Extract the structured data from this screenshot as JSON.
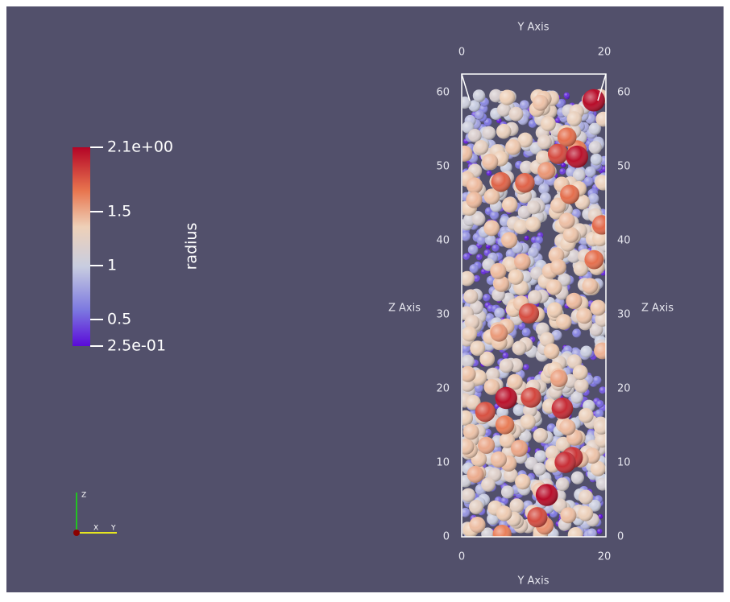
{
  "colorbar": {
    "title": "radius",
    "labels": [
      "2.1e+00",
      "1.5",
      "1",
      "0.5",
      "2.5e-01"
    ]
  },
  "axes": {
    "top": {
      "title": "Y Axis",
      "ticks": [
        "0",
        "20"
      ]
    },
    "bottom": {
      "title": "Y Axis",
      "ticks": [
        "0",
        "20"
      ]
    },
    "left": {
      "title": "Z Axis",
      "ticks": [
        "0",
        "10",
        "20",
        "30",
        "40",
        "50",
        "60"
      ]
    },
    "right": {
      "title": "Z Axis",
      "ticks": [
        "0",
        "10",
        "20",
        "30",
        "40",
        "50",
        "60"
      ]
    }
  },
  "orientation": {
    "z": "Z",
    "x": "X",
    "y": "Y"
  }
}
